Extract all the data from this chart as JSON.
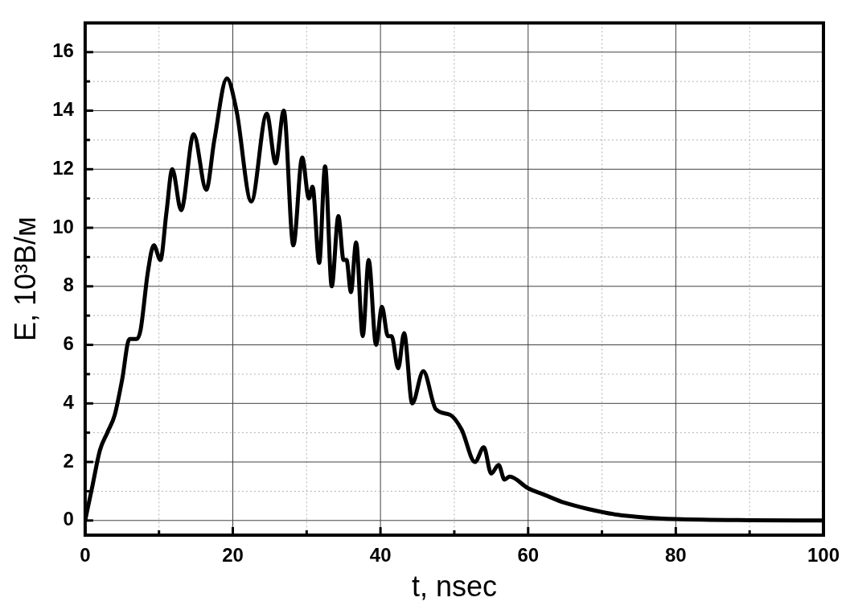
{
  "chart_data": {
    "type": "line",
    "xlabel": "t, nsec",
    "ylabel": "E, 10³В/м",
    "xlim": [
      0,
      100
    ],
    "ylim": [
      -0.5,
      17
    ],
    "xticks": [
      0,
      {
        "value": 10,
        "label": null
      },
      20,
      {
        "value": 30,
        "label": null
      },
      40,
      {
        "value": 50,
        "label": null
      },
      60,
      {
        "value": 70,
        "label": null
      },
      80,
      {
        "value": 90,
        "label": null
      },
      100
    ],
    "yticks": [
      0,
      {
        "value": 1,
        "label": null
      },
      2,
      {
        "value": 3,
        "label": null
      },
      4,
      {
        "value": 5,
        "label": null
      },
      6,
      {
        "value": 7,
        "label": null
      },
      8,
      {
        "value": 9,
        "label": null
      },
      10,
      {
        "value": 11,
        "label": null
      },
      12,
      {
        "value": 13,
        "label": null
      },
      14,
      {
        "value": 15,
        "label": null
      },
      16
    ],
    "grid": true,
    "marker": "none",
    "line_style": "solid",
    "series": [
      {
        "color": "#000000",
        "x": [
          0,
          1,
          2,
          3,
          4,
          5,
          6,
          7,
          7.5,
          8.5,
          9.3,
          10.2,
          11,
          11.8,
          13,
          14.7,
          16.4,
          17.5,
          19.2,
          20.5,
          22.5,
          24.6,
          25.8,
          26.9,
          28.2,
          29.4,
          30.3,
          30.8,
          31.7,
          32.5,
          33.4,
          34.3,
          35,
          35.4,
          36,
          36.7,
          37.6,
          38.4,
          39.4,
          40.2,
          41,
          41.5,
          42.4,
          43.2,
          44.3,
          45.8,
          47.5,
          49.5,
          51,
          52.8,
          54,
          55,
          56,
          56.8,
          57.5,
          60,
          62,
          65,
          68,
          72,
          76,
          80,
          90,
          100
        ],
        "values": [
          0,
          1.2,
          2.4,
          3.0,
          3.6,
          4.8,
          6.2,
          6.2,
          6.5,
          8.5,
          9.4,
          8.9,
          10.5,
          12.0,
          10.6,
          13.2,
          11.3,
          13.0,
          15.1,
          14.0,
          10.9,
          13.9,
          12.2,
          14.0,
          9.4,
          12.4,
          11.0,
          11.4,
          8.8,
          12.1,
          8.0,
          10.4,
          8.9,
          8.9,
          7.8,
          9.5,
          6.3,
          8.9,
          6.0,
          7.3,
          6.3,
          6.3,
          5.2,
          6.4,
          4.0,
          5.1,
          3.8,
          3.6,
          3.1,
          2.0,
          2.5,
          1.6,
          1.9,
          1.4,
          1.5,
          1.1,
          0.9,
          0.6,
          0.4,
          0.2,
          0.1,
          0.05,
          0.01,
          0
        ]
      }
    ]
  }
}
